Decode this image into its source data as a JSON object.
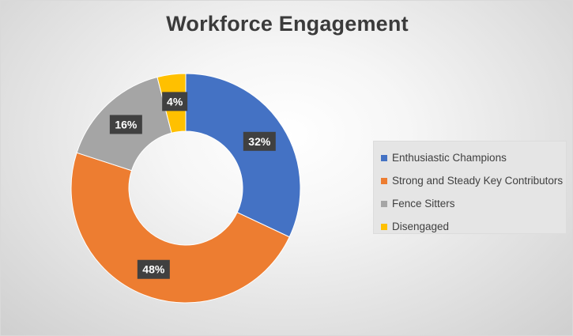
{
  "chart_data": {
    "type": "pie",
    "title": "Workforce Engagement",
    "categories": [
      "Enthusiastic Champions",
      "Strong and Steady Key Contributors",
      "Fence Sitters",
      "Disengaged"
    ],
    "values": [
      32,
      48,
      16,
      4
    ],
    "labels": [
      "32%",
      "48%",
      "16%",
      "4%"
    ],
    "colors": [
      "#4472C4",
      "#ED7D31",
      "#A5A5A5",
      "#FFC000"
    ],
    "legend": "right"
  }
}
